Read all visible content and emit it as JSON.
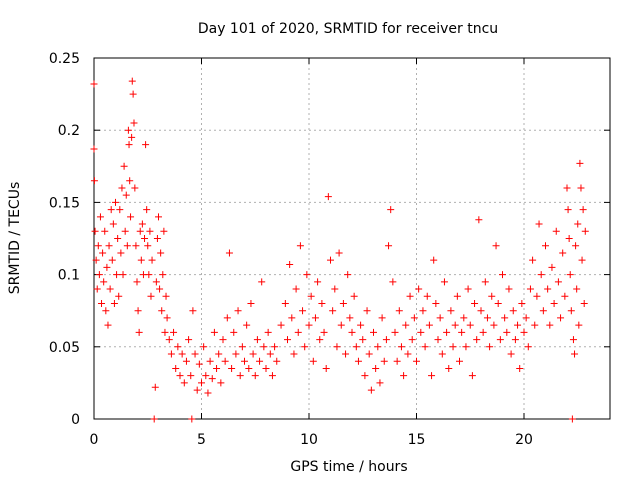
{
  "chart_data": {
    "type": "scatter",
    "title": "Day 101 of 2020, SRMTID for receiver tncu",
    "xlabel": "GPS time / hours",
    "ylabel": "SRMTID / TECUs",
    "xlim": [
      0,
      24
    ],
    "ylim": [
      0,
      0.25
    ],
    "x_ticks": [
      "0",
      "5",
      "10",
      "15",
      "20"
    ],
    "y_ticks": [
      "0",
      "0.05",
      "0.1",
      "0.15",
      "0.2",
      "0.25"
    ],
    "grid": true,
    "legend": "none",
    "marker": "plus",
    "color": "#ff0000",
    "series": [
      {
        "points": [
          [
            0.0,
            0.232
          ],
          [
            0.0,
            0.187
          ],
          [
            0.02,
            0.165
          ],
          [
            0.05,
            0.13
          ],
          [
            0.1,
            0.11
          ],
          [
            0.15,
            0.09
          ],
          [
            0.2,
            0.12
          ],
          [
            0.25,
            0.1
          ],
          [
            0.3,
            0.14
          ],
          [
            0.35,
            0.08
          ],
          [
            0.4,
            0.115
          ],
          [
            0.45,
            0.095
          ],
          [
            0.5,
            0.13
          ],
          [
            0.55,
            0.075
          ],
          [
            0.6,
            0.105
          ],
          [
            0.65,
            0.065
          ],
          [
            0.7,
            0.12
          ],
          [
            0.75,
            0.09
          ],
          [
            0.8,
            0.145
          ],
          [
            0.85,
            0.11
          ],
          [
            0.9,
            0.135
          ],
          [
            0.95,
            0.08
          ],
          [
            1.0,
            0.15
          ],
          [
            1.05,
            0.1
          ],
          [
            1.1,
            0.125
          ],
          [
            1.15,
            0.085
          ],
          [
            1.2,
            0.145
          ],
          [
            1.25,
            0.115
          ],
          [
            1.3,
            0.16
          ],
          [
            1.35,
            0.1
          ],
          [
            1.4,
            0.175
          ],
          [
            1.45,
            0.13
          ],
          [
            1.5,
            0.155
          ],
          [
            1.55,
            0.12
          ],
          [
            1.6,
            0.2
          ],
          [
            1.63,
            0.19
          ],
          [
            1.66,
            0.165
          ],
          [
            1.7,
            0.14
          ],
          [
            1.75,
            0.195
          ],
          [
            1.78,
            0.234
          ],
          [
            1.82,
            0.225
          ],
          [
            1.86,
            0.205
          ],
          [
            1.9,
            0.16
          ],
          [
            1.95,
            0.12
          ],
          [
            2.0,
            0.095
          ],
          [
            2.05,
            0.075
          ],
          [
            2.1,
            0.06
          ],
          [
            2.15,
            0.13
          ],
          [
            2.2,
            0.11
          ],
          [
            2.25,
            0.135
          ],
          [
            2.3,
            0.1
          ],
          [
            2.35,
            0.125
          ],
          [
            2.4,
            0.19
          ],
          [
            2.45,
            0.145
          ],
          [
            2.5,
            0.12
          ],
          [
            2.55,
            0.1
          ],
          [
            2.6,
            0.13
          ],
          [
            2.65,
            0.085
          ],
          [
            2.7,
            0.11
          ],
          [
            2.8,
            0.0
          ],
          [
            2.85,
            0.022
          ],
          [
            2.9,
            0.095
          ],
          [
            2.95,
            0.125
          ],
          [
            3.0,
            0.14
          ],
          [
            3.05,
            0.09
          ],
          [
            3.1,
            0.115
          ],
          [
            3.15,
            0.075
          ],
          [
            3.2,
            0.1
          ],
          [
            3.25,
            0.13
          ],
          [
            3.3,
            0.06
          ],
          [
            3.35,
            0.085
          ],
          [
            3.4,
            0.07
          ],
          [
            3.5,
            0.055
          ],
          [
            3.6,
            0.045
          ],
          [
            3.7,
            0.06
          ],
          [
            3.8,
            0.035
          ],
          [
            3.9,
            0.05
          ],
          [
            4.0,
            0.03
          ],
          [
            4.1,
            0.045
          ],
          [
            4.2,
            0.025
          ],
          [
            4.3,
            0.04
          ],
          [
            4.4,
            0.055
          ],
          [
            4.5,
            0.03
          ],
          [
            4.55,
            0.0
          ],
          [
            4.6,
            0.075
          ],
          [
            4.7,
            0.045
          ],
          [
            4.8,
            0.02
          ],
          [
            4.9,
            0.038
          ],
          [
            5.0,
            0.025
          ],
          [
            5.1,
            0.05
          ],
          [
            5.2,
            0.03
          ],
          [
            5.3,
            0.018
          ],
          [
            5.4,
            0.04
          ],
          [
            5.5,
            0.028
          ],
          [
            5.6,
            0.06
          ],
          [
            5.7,
            0.035
          ],
          [
            5.8,
            0.045
          ],
          [
            5.9,
            0.025
          ],
          [
            6.0,
            0.055
          ],
          [
            6.1,
            0.04
          ],
          [
            6.2,
            0.07
          ],
          [
            6.3,
            0.115
          ],
          [
            6.4,
            0.035
          ],
          [
            6.5,
            0.06
          ],
          [
            6.6,
            0.045
          ],
          [
            6.7,
            0.075
          ],
          [
            6.8,
            0.03
          ],
          [
            6.9,
            0.05
          ],
          [
            7.0,
            0.04
          ],
          [
            7.1,
            0.065
          ],
          [
            7.2,
            0.035
          ],
          [
            7.3,
            0.08
          ],
          [
            7.4,
            0.045
          ],
          [
            7.5,
            0.03
          ],
          [
            7.6,
            0.055
          ],
          [
            7.7,
            0.04
          ],
          [
            7.8,
            0.095
          ],
          [
            7.9,
            0.05
          ],
          [
            8.0,
            0.035
          ],
          [
            8.1,
            0.06
          ],
          [
            8.2,
            0.045
          ],
          [
            8.3,
            0.03
          ],
          [
            8.4,
            0.05
          ],
          [
            8.5,
            0.04
          ],
          [
            8.7,
            0.065
          ],
          [
            8.9,
            0.08
          ],
          [
            9.0,
            0.055
          ],
          [
            9.1,
            0.107
          ],
          [
            9.2,
            0.07
          ],
          [
            9.3,
            0.045
          ],
          [
            9.4,
            0.09
          ],
          [
            9.5,
            0.06
          ],
          [
            9.6,
            0.12
          ],
          [
            9.7,
            0.075
          ],
          [
            9.8,
            0.05
          ],
          [
            9.9,
            0.1
          ],
          [
            10.0,
            0.065
          ],
          [
            10.1,
            0.085
          ],
          [
            10.2,
            0.04
          ],
          [
            10.3,
            0.07
          ],
          [
            10.4,
            0.095
          ],
          [
            10.5,
            0.055
          ],
          [
            10.6,
            0.08
          ],
          [
            10.7,
            0.06
          ],
          [
            10.8,
            0.035
          ],
          [
            10.9,
            0.154
          ],
          [
            11.0,
            0.11
          ],
          [
            11.1,
            0.075
          ],
          [
            11.2,
            0.09
          ],
          [
            11.3,
            0.05
          ],
          [
            11.4,
            0.115
          ],
          [
            11.5,
            0.065
          ],
          [
            11.6,
            0.08
          ],
          [
            11.7,
            0.045
          ],
          [
            11.8,
            0.1
          ],
          [
            11.9,
            0.07
          ],
          [
            12.0,
            0.06
          ],
          [
            12.1,
            0.085
          ],
          [
            12.2,
            0.05
          ],
          [
            12.3,
            0.04
          ],
          [
            12.4,
            0.065
          ],
          [
            12.5,
            0.055
          ],
          [
            12.6,
            0.03
          ],
          [
            12.7,
            0.075
          ],
          [
            12.8,
            0.045
          ],
          [
            12.9,
            0.02
          ],
          [
            13.0,
            0.06
          ],
          [
            13.1,
            0.035
          ],
          [
            13.2,
            0.05
          ],
          [
            13.3,
            0.025
          ],
          [
            13.4,
            0.07
          ],
          [
            13.5,
            0.04
          ],
          [
            13.6,
            0.055
          ],
          [
            13.7,
            0.12
          ],
          [
            13.8,
            0.145
          ],
          [
            13.9,
            0.095
          ],
          [
            14.0,
            0.06
          ],
          [
            14.1,
            0.04
          ],
          [
            14.2,
            0.075
          ],
          [
            14.3,
            0.05
          ],
          [
            14.4,
            0.03
          ],
          [
            14.5,
            0.065
          ],
          [
            14.6,
            0.045
          ],
          [
            14.7,
            0.085
          ],
          [
            14.8,
            0.055
          ],
          [
            14.9,
            0.07
          ],
          [
            15.0,
            0.04
          ],
          [
            15.1,
            0.09
          ],
          [
            15.2,
            0.06
          ],
          [
            15.3,
            0.075
          ],
          [
            15.4,
            0.05
          ],
          [
            15.5,
            0.085
          ],
          [
            15.6,
            0.065
          ],
          [
            15.7,
            0.03
          ],
          [
            15.8,
            0.11
          ],
          [
            15.9,
            0.08
          ],
          [
            16.0,
            0.055
          ],
          [
            16.1,
            0.07
          ],
          [
            16.2,
            0.045
          ],
          [
            16.3,
            0.095
          ],
          [
            16.4,
            0.06
          ],
          [
            16.5,
            0.035
          ],
          [
            16.6,
            0.075
          ],
          [
            16.7,
            0.05
          ],
          [
            16.8,
            0.065
          ],
          [
            16.9,
            0.085
          ],
          [
            17.0,
            0.04
          ],
          [
            17.1,
            0.06
          ],
          [
            17.2,
            0.07
          ],
          [
            17.3,
            0.05
          ],
          [
            17.4,
            0.09
          ],
          [
            17.5,
            0.065
          ],
          [
            17.6,
            0.03
          ],
          [
            17.7,
            0.08
          ],
          [
            17.8,
            0.055
          ],
          [
            17.9,
            0.138
          ],
          [
            18.0,
            0.075
          ],
          [
            18.1,
            0.06
          ],
          [
            18.2,
            0.095
          ],
          [
            18.3,
            0.07
          ],
          [
            18.4,
            0.05
          ],
          [
            18.5,
            0.085
          ],
          [
            18.6,
            0.065
          ],
          [
            18.7,
            0.12
          ],
          [
            18.8,
            0.08
          ],
          [
            18.9,
            0.055
          ],
          [
            19.0,
            0.1
          ],
          [
            19.1,
            0.07
          ],
          [
            19.2,
            0.06
          ],
          [
            19.3,
            0.09
          ],
          [
            19.4,
            0.045
          ],
          [
            19.5,
            0.075
          ],
          [
            19.6,
            0.055
          ],
          [
            19.7,
            0.065
          ],
          [
            19.8,
            0.035
          ],
          [
            19.9,
            0.08
          ],
          [
            20.0,
            0.06
          ],
          [
            20.1,
            0.07
          ],
          [
            20.2,
            0.05
          ],
          [
            20.3,
            0.09
          ],
          [
            20.4,
            0.11
          ],
          [
            20.5,
            0.065
          ],
          [
            20.6,
            0.085
          ],
          [
            20.7,
            0.135
          ],
          [
            20.8,
            0.1
          ],
          [
            20.9,
            0.075
          ],
          [
            21.0,
            0.12
          ],
          [
            21.1,
            0.09
          ],
          [
            21.2,
            0.065
          ],
          [
            21.3,
            0.105
          ],
          [
            21.4,
            0.08
          ],
          [
            21.5,
            0.13
          ],
          [
            21.6,
            0.095
          ],
          [
            21.7,
            0.07
          ],
          [
            21.8,
            0.115
          ],
          [
            21.9,
            0.085
          ],
          [
            22.0,
            0.16
          ],
          [
            22.05,
            0.145
          ],
          [
            22.1,
            0.125
          ],
          [
            22.15,
            0.1
          ],
          [
            22.2,
            0.075
          ],
          [
            22.25,
            0.0
          ],
          [
            22.3,
            0.055
          ],
          [
            22.35,
            0.045
          ],
          [
            22.4,
            0.12
          ],
          [
            22.45,
            0.09
          ],
          [
            22.5,
            0.135
          ],
          [
            22.55,
            0.065
          ],
          [
            22.6,
            0.177
          ],
          [
            22.65,
            0.16
          ],
          [
            22.7,
            0.11
          ],
          [
            22.75,
            0.145
          ],
          [
            22.8,
            0.08
          ],
          [
            22.85,
            0.13
          ]
        ]
      }
    ]
  }
}
